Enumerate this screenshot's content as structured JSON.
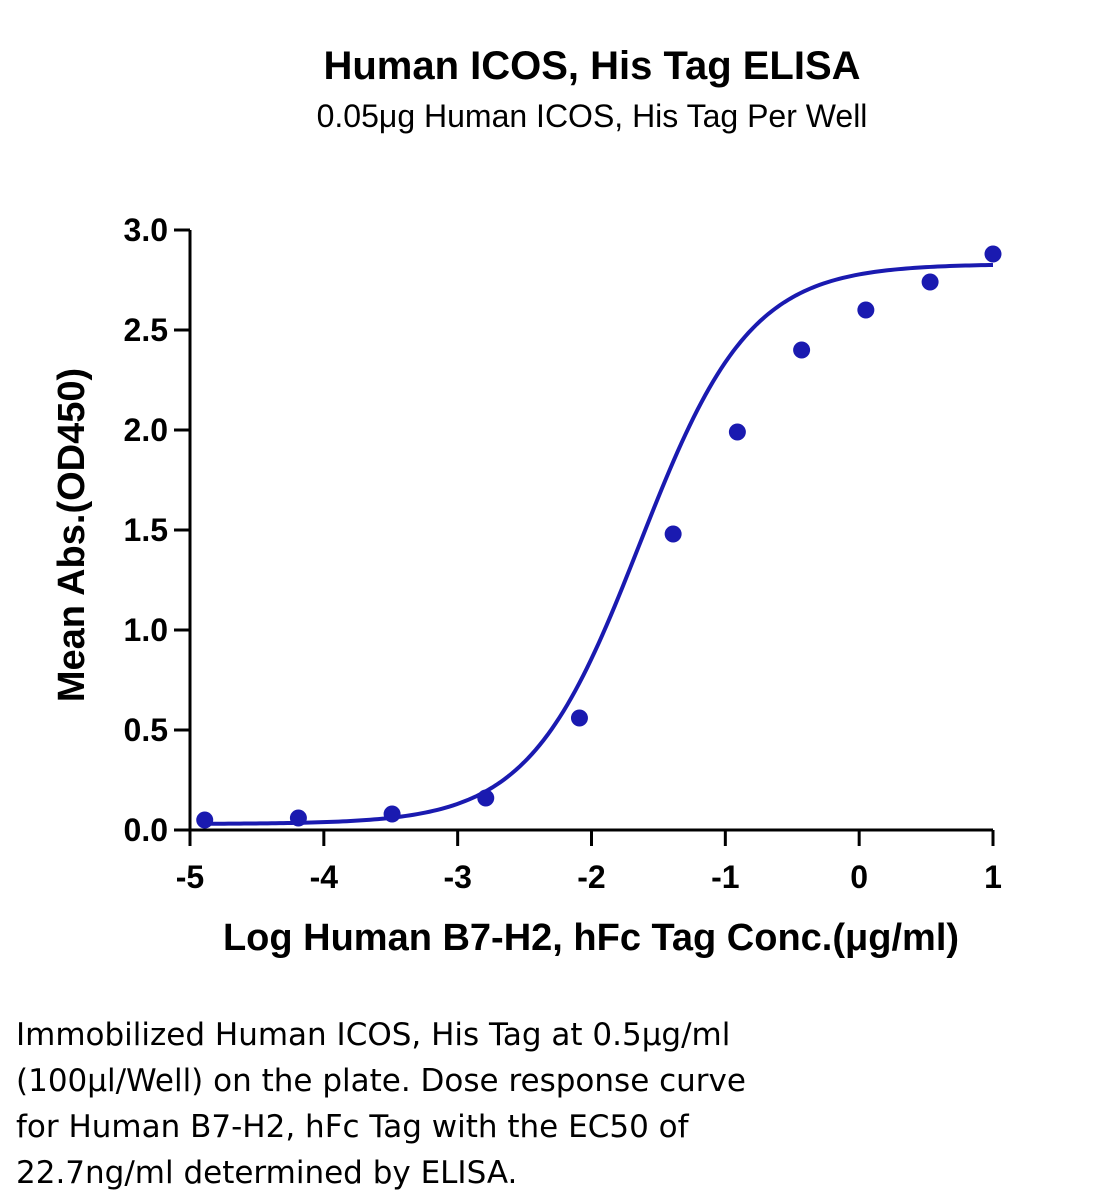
{
  "chart_data": {
    "type": "scatter",
    "title": "Human ICOS, His Tag ELISA",
    "subtitle": "0.05μg Human ICOS, His Tag Per Well",
    "xlabel": "Log Human B7-H2, hFc Tag Conc.(μg/ml)",
    "ylabel": "Mean Abs.(OD450)",
    "xlim": [
      -5,
      1
    ],
    "ylim": [
      0,
      3.0
    ],
    "xticks": [
      -5,
      -4,
      -3,
      -2,
      -1,
      0,
      1
    ],
    "xtick_labels": [
      "-5",
      "-4",
      "-3",
      "-2",
      "-1",
      "0",
      "1"
    ],
    "yticks": [
      0,
      0.5,
      1.0,
      1.5,
      2.0,
      2.5,
      3.0
    ],
    "ytick_labels": [
      "0.0",
      "0.5",
      "1.0",
      "1.5",
      "2.0",
      "2.5",
      "3.0"
    ],
    "grid": false,
    "series": [
      {
        "x": [
          -4.89,
          -4.19,
          -3.49,
          -2.79,
          -2.09,
          -1.39,
          -0.91,
          -0.43,
          0.05,
          0.53,
          1.0
        ],
        "y": [
          0.05,
          0.06,
          0.08,
          0.16,
          0.56,
          1.48,
          1.99,
          2.4,
          2.6,
          2.74,
          2.88
        ]
      }
    ],
    "fit_curve": {
      "model": "4PL",
      "bottom": 0.03,
      "top": 2.83,
      "log_ec50": -1.64,
      "hill_slope": 1.05,
      "x_range": [
        -4.89,
        1.0
      ]
    },
    "colors": {
      "points": "#1a1ab0",
      "curve": "#1a1ab0",
      "axes": "#000000"
    }
  },
  "caption_lines": [
    "Immobilized Human ICOS, His Tag at 0.5μg/ml",
    "(100μl/Well) on the plate. Dose response curve",
    "for Human B7-H2, hFc Tag with the EC50 of",
    "22.7ng/ml determined by ELISA."
  ]
}
